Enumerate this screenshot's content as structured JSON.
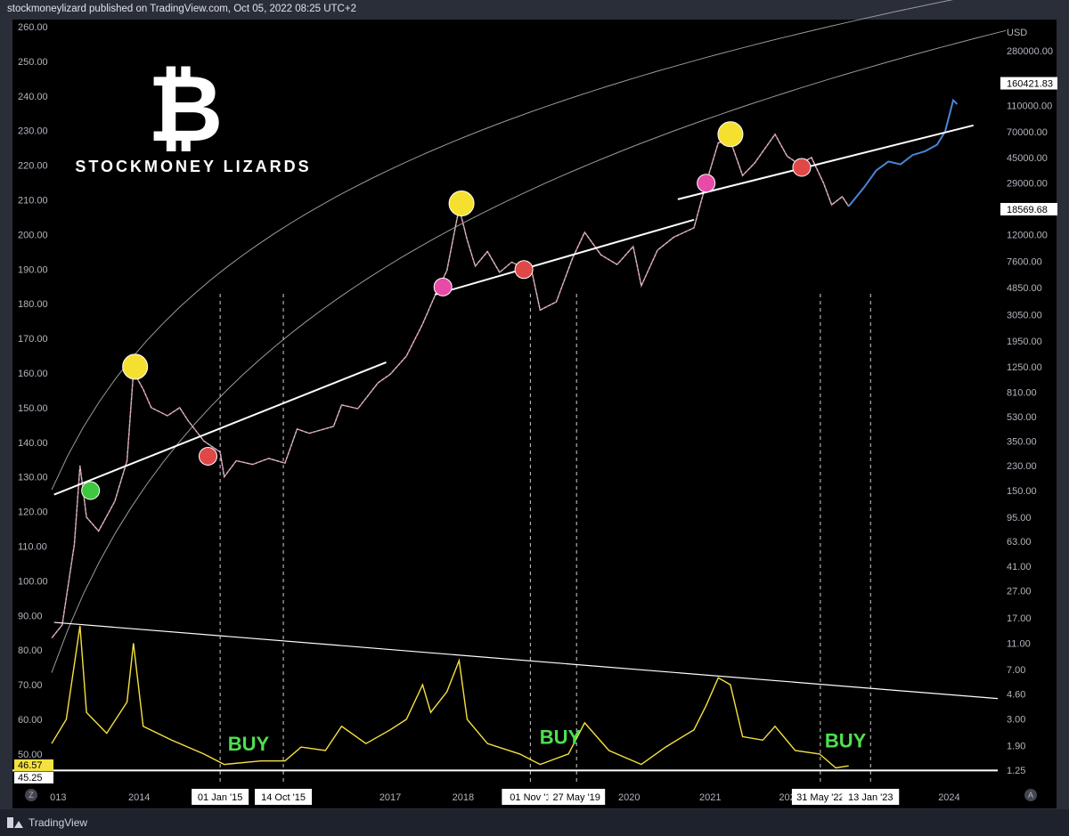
{
  "header": {
    "publisher_line": "stockmoneylizard published on TradingView.com, Oct 05, 2022 08:25 UTC+2"
  },
  "brand": {
    "logo_symbol": "₿",
    "name": "STOCKMONEY  LIZARDS",
    "icon": "bitcoin-logo"
  },
  "footer": {
    "tv_label": "TradingView",
    "tv_icon": "tradingview-logo-icon",
    "left_button": "Z",
    "right_button": "A"
  },
  "colors": {
    "background": "#000000",
    "frame": "#2a2e39",
    "price": "#d6c6cc",
    "price_accent": "#e0447a",
    "projection": "#4a86d8",
    "indicator": "#f5e142",
    "buy_text": "#4ee04e",
    "peak_marker": "#f5e030",
    "pink_marker": "#e84aa8",
    "red_marker": "#e04848",
    "green_marker": "#3ec83e",
    "trend_line": "#ffffff",
    "channel_line": "#9a9a9a"
  },
  "chart_data": {
    "type": "line",
    "symbol": "BTC",
    "currency": "USD",
    "scale": "log",
    "left_axis": {
      "ticks": [
        "260.00",
        "250.00",
        "240.00",
        "230.00",
        "220.00",
        "210.00",
        "200.00",
        "190.00",
        "180.00",
        "170.00",
        "160.00",
        "150.00",
        "140.00",
        "130.00",
        "120.00",
        "110.00",
        "100.00",
        "90.00",
        "80.00",
        "70.00",
        "60.00",
        "50.00"
      ],
      "range": [
        45,
        260
      ]
    },
    "right_axis": {
      "unit_label": "USD",
      "ticks": [
        "280000.00",
        "160421.83",
        "110000.00",
        "70000.00",
        "45000.00",
        "29000.00",
        "18569.68",
        "12000.00",
        "7600.00",
        "4850.00",
        "3050.00",
        "1950.00",
        "1250.00",
        "810.00",
        "530.00",
        "350.00",
        "230.00",
        "150.00",
        "95.00",
        "63.00",
        "41.00",
        "27.00",
        "17.00",
        "11.00",
        "7.00",
        "4.60",
        "3.00",
        "1.90",
        "1.25"
      ],
      "highlighted": [
        "160421.83",
        "18569.68"
      ]
    },
    "x_axis": {
      "ticks": [
        "013",
        "2014",
        "2017",
        "2018",
        "2020",
        "2021",
        "202",
        "2024"
      ],
      "highlighted": [
        "01 Jan '15",
        "14 Oct '15",
        "01 Nov '1",
        "27 May '19",
        "31 May '22",
        "13 Jan '23"
      ]
    },
    "indicator_last": [
      "46.57",
      "45.25"
    ],
    "price_series": [
      {
        "t": 2012.92,
        "p": 12
      },
      {
        "t": 2013.05,
        "p": 15
      },
      {
        "t": 2013.2,
        "p": 60
      },
      {
        "t": 2013.27,
        "p": 230
      },
      {
        "t": 2013.35,
        "p": 95
      },
      {
        "t": 2013.5,
        "p": 75
      },
      {
        "t": 2013.7,
        "p": 125
      },
      {
        "t": 2013.85,
        "p": 250
      },
      {
        "t": 2013.93,
        "p": 1150
      },
      {
        "t": 2014.05,
        "p": 850
      },
      {
        "t": 2014.15,
        "p": 620
      },
      {
        "t": 2014.35,
        "p": 540
      },
      {
        "t": 2014.5,
        "p": 620
      },
      {
        "t": 2014.6,
        "p": 500
      },
      {
        "t": 2014.8,
        "p": 350
      },
      {
        "t": 2015.0,
        "p": 290
      },
      {
        "t": 2015.05,
        "p": 190
      },
      {
        "t": 2015.2,
        "p": 250
      },
      {
        "t": 2015.4,
        "p": 235
      },
      {
        "t": 2015.6,
        "p": 260
      },
      {
        "t": 2015.8,
        "p": 240
      },
      {
        "t": 2015.95,
        "p": 430
      },
      {
        "t": 2016.1,
        "p": 400
      },
      {
        "t": 2016.4,
        "p": 450
      },
      {
        "t": 2016.5,
        "p": 650
      },
      {
        "t": 2016.7,
        "p": 610
      },
      {
        "t": 2016.95,
        "p": 950
      },
      {
        "t": 2017.1,
        "p": 1100
      },
      {
        "t": 2017.3,
        "p": 1500
      },
      {
        "t": 2017.5,
        "p": 2600
      },
      {
        "t": 2017.65,
        "p": 4200
      },
      {
        "t": 2017.8,
        "p": 6500
      },
      {
        "t": 2017.95,
        "p": 19000
      },
      {
        "t": 2018.05,
        "p": 11000
      },
      {
        "t": 2018.15,
        "p": 7000
      },
      {
        "t": 2018.3,
        "p": 9000
      },
      {
        "t": 2018.45,
        "p": 6300
      },
      {
        "t": 2018.6,
        "p": 7500
      },
      {
        "t": 2018.85,
        "p": 6300
      },
      {
        "t": 2018.95,
        "p": 3300
      },
      {
        "t": 2019.15,
        "p": 3800
      },
      {
        "t": 2019.35,
        "p": 8000
      },
      {
        "t": 2019.5,
        "p": 12500
      },
      {
        "t": 2019.7,
        "p": 8500
      },
      {
        "t": 2019.9,
        "p": 7200
      },
      {
        "t": 2020.1,
        "p": 9800
      },
      {
        "t": 2020.2,
        "p": 5000
      },
      {
        "t": 2020.4,
        "p": 9200
      },
      {
        "t": 2020.6,
        "p": 11500
      },
      {
        "t": 2020.85,
        "p": 13500
      },
      {
        "t": 2021.0,
        "p": 29000
      },
      {
        "t": 2021.15,
        "p": 58000
      },
      {
        "t": 2021.3,
        "p": 60000
      },
      {
        "t": 2021.45,
        "p": 33000
      },
      {
        "t": 2021.6,
        "p": 41000
      },
      {
        "t": 2021.85,
        "p": 67000
      },
      {
        "t": 2022.0,
        "p": 46000
      },
      {
        "t": 2022.15,
        "p": 40000
      },
      {
        "t": 2022.3,
        "p": 45000
      },
      {
        "t": 2022.45,
        "p": 29000
      },
      {
        "t": 2022.55,
        "p": 20000
      },
      {
        "t": 2022.68,
        "p": 23000
      },
      {
        "t": 2022.76,
        "p": 19500
      }
    ],
    "projection_series": [
      {
        "t": 2022.76,
        "p": 19500
      },
      {
        "t": 2022.95,
        "p": 27000
      },
      {
        "t": 2023.1,
        "p": 36000
      },
      {
        "t": 2023.25,
        "p": 42000
      },
      {
        "t": 2023.4,
        "p": 40000
      },
      {
        "t": 2023.55,
        "p": 47000
      },
      {
        "t": 2023.7,
        "p": 50000
      },
      {
        "t": 2023.85,
        "p": 56000
      },
      {
        "t": 2023.95,
        "p": 70000
      },
      {
        "t": 2024.05,
        "p": 120000
      },
      {
        "t": 2024.1,
        "p": 112000
      }
    ],
    "indicator_series": [
      {
        "t": 2012.92,
        "v": 53
      },
      {
        "t": 2013.1,
        "v": 60
      },
      {
        "t": 2013.27,
        "v": 87
      },
      {
        "t": 2013.35,
        "v": 62
      },
      {
        "t": 2013.6,
        "v": 56
      },
      {
        "t": 2013.85,
        "v": 65
      },
      {
        "t": 2013.93,
        "v": 82
      },
      {
        "t": 2014.05,
        "v": 58
      },
      {
        "t": 2014.4,
        "v": 54
      },
      {
        "t": 2014.8,
        "v": 50
      },
      {
        "t": 2015.05,
        "v": 47
      },
      {
        "t": 2015.5,
        "v": 48
      },
      {
        "t": 2015.8,
        "v": 48
      },
      {
        "t": 2016.0,
        "v": 52
      },
      {
        "t": 2016.3,
        "v": 51
      },
      {
        "t": 2016.5,
        "v": 58
      },
      {
        "t": 2016.8,
        "v": 53
      },
      {
        "t": 2017.1,
        "v": 57
      },
      {
        "t": 2017.3,
        "v": 60
      },
      {
        "t": 2017.5,
        "v": 70
      },
      {
        "t": 2017.6,
        "v": 62
      },
      {
        "t": 2017.8,
        "v": 68
      },
      {
        "t": 2017.95,
        "v": 77
      },
      {
        "t": 2018.05,
        "v": 60
      },
      {
        "t": 2018.3,
        "v": 53
      },
      {
        "t": 2018.7,
        "v": 50
      },
      {
        "t": 2018.95,
        "v": 47
      },
      {
        "t": 2019.3,
        "v": 50
      },
      {
        "t": 2019.5,
        "v": 59
      },
      {
        "t": 2019.8,
        "v": 51
      },
      {
        "t": 2020.2,
        "v": 47
      },
      {
        "t": 2020.5,
        "v": 52
      },
      {
        "t": 2020.85,
        "v": 57
      },
      {
        "t": 2021.0,
        "v": 64
      },
      {
        "t": 2021.15,
        "v": 72
      },
      {
        "t": 2021.3,
        "v": 70
      },
      {
        "t": 2021.45,
        "v": 55
      },
      {
        "t": 2021.7,
        "v": 54
      },
      {
        "t": 2021.85,
        "v": 58
      },
      {
        "t": 2022.1,
        "v": 51
      },
      {
        "t": 2022.4,
        "v": 50
      },
      {
        "t": 2022.6,
        "v": 46
      },
      {
        "t": 2022.76,
        "v": 46.57
      }
    ],
    "markers": [
      {
        "t": 2013.4,
        "p": 150,
        "kind": "green"
      },
      {
        "t": 2013.95,
        "p": 1250,
        "kind": "peak"
      },
      {
        "t": 2014.85,
        "p": 270,
        "kind": "red"
      },
      {
        "t": 2017.75,
        "p": 4900,
        "kind": "pink"
      },
      {
        "t": 2017.98,
        "p": 20500,
        "kind": "peak"
      },
      {
        "t": 2018.75,
        "p": 6600,
        "kind": "red"
      },
      {
        "t": 2021.0,
        "p": 29000,
        "kind": "pink"
      },
      {
        "t": 2021.3,
        "p": 67000,
        "kind": "peak"
      },
      {
        "t": 2022.18,
        "p": 38000,
        "kind": "red"
      }
    ],
    "trend_segments": [
      {
        "from": {
          "t": 2012.95,
          "p": 140
        },
        "to": {
          "t": 2017.05,
          "p": 1350
        }
      },
      {
        "from": {
          "t": 2017.65,
          "p": 4300
        },
        "to": {
          "t": 2020.85,
          "p": 15500
        }
      },
      {
        "from": {
          "t": 2020.65,
          "p": 22000
        },
        "to": {
          "t": 2024.3,
          "p": 78000
        }
      }
    ],
    "indicator_downtrend": {
      "from": {
        "t": 2012.95,
        "v": 88
      },
      "to": {
        "t": 2024.6,
        "v": 66
      }
    },
    "indicator_floor": 45.25,
    "vertical_lines": [
      "01 Jan '15",
      "14 Oct '15",
      "01 Nov '1",
      "27 May '19",
      "31 May '22",
      "13 Jan '23"
    ],
    "buy_annotations": [
      {
        "t": 2015.35,
        "v": 53,
        "text": "BUY"
      },
      {
        "t": 2019.2,
        "v": 55,
        "text": "BUY"
      },
      {
        "t": 2022.72,
        "v": 54,
        "text": "BUY"
      }
    ]
  }
}
